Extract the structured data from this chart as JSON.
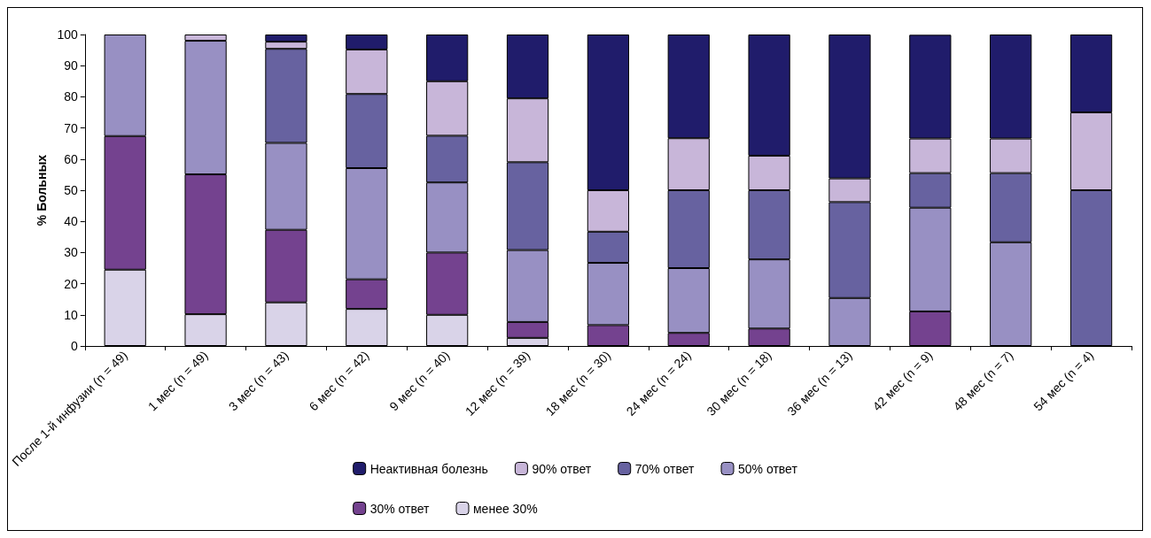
{
  "chart_data": {
    "type": "bar",
    "stacked": true,
    "ylabel": "% Больных",
    "categories": [
      "После 1-й инфузии (n = 49)",
      "1 мес (n = 49)",
      "3 мес (n = 43)",
      "6 мес (n = 42)",
      "9 мес (n = 40)",
      "12 мес (n = 39)",
      "18 мес (n = 30)",
      "24 мес (n = 24)",
      "30 мес (n = 18)",
      "36 мес (n = 13)",
      "42 мес (n = 9)",
      "48 мес (n = 7)",
      "54 мес (n = 4)"
    ],
    "series": [
      {
        "name": "менее 30%",
        "color": "#d9d3e8",
        "values": [
          24.5,
          10.2,
          14,
          11.9,
          10,
          2.6,
          0,
          0,
          0,
          0,
          0,
          0,
          0
        ]
      },
      {
        "name": "30% ответ",
        "color": "#74428f",
        "values": [
          42.9,
          44.9,
          23.3,
          9.5,
          20,
          5.1,
          6.7,
          4.2,
          5.6,
          0,
          11.1,
          0,
          0
        ]
      },
      {
        "name": "50% ответ",
        "color": "#9890c3",
        "values": [
          32.6,
          42.9,
          27.9,
          35.7,
          22.5,
          23.1,
          20,
          20.8,
          22.2,
          15.4,
          33.3,
          33.3,
          0
        ]
      },
      {
        "name": "70% ответ",
        "color": "#6762a0",
        "values": [
          0,
          0,
          30.2,
          23.8,
          15,
          28.2,
          10,
          25,
          22.2,
          30.8,
          11.1,
          22.2,
          50
        ]
      },
      {
        "name": "90% ответ",
        "color": "#c8b6d9",
        "values": [
          0,
          2,
          2.3,
          14.3,
          17.5,
          20.5,
          13.3,
          16.7,
          11.1,
          7.6,
          11.1,
          11.1,
          25
        ]
      },
      {
        "name": "Неактивная болезнь",
        "color": "#201c6b",
        "values": [
          0,
          0,
          2.3,
          4.8,
          15,
          20.5,
          50,
          33.3,
          38.9,
          46.2,
          33.3,
          33.4,
          25
        ]
      }
    ],
    "ylim": [
      0,
      100
    ],
    "yticks": [
      0,
      10,
      20,
      30,
      40,
      50,
      60,
      70,
      80,
      90,
      100
    ],
    "grid": false,
    "legend": "bottom"
  }
}
